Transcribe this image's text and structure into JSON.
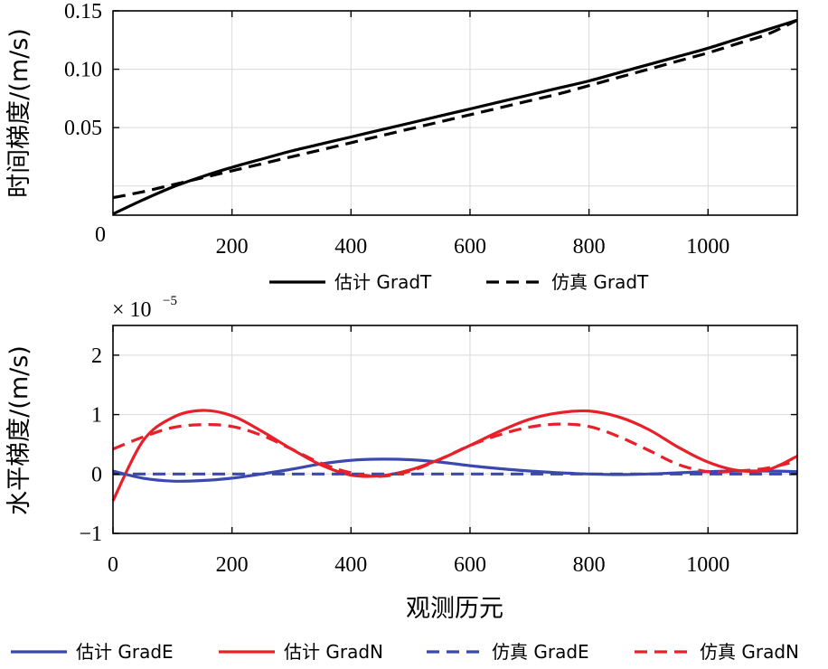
{
  "chart_data": [
    {
      "type": "line",
      "ylabel": "时间梯度/(m/s)",
      "xlabel": "",
      "xlim": [
        0,
        1150
      ],
      "ylim": [
        -0.025,
        0.15
      ],
      "x_ticks": [
        200,
        400,
        600,
        800,
        1000
      ],
      "x_tick_labels": [
        "200",
        "400",
        "600",
        "800",
        "1000"
      ],
      "y_ticks": [
        0.05,
        0.1,
        0.15
      ],
      "y_tick_labels": [
        "0.05",
        "0.10",
        "0.15"
      ],
      "origin_label": "0",
      "grid": true,
      "legend_position": "bottom",
      "x": [
        0,
        50,
        100,
        150,
        200,
        250,
        300,
        350,
        400,
        450,
        500,
        550,
        600,
        650,
        700,
        750,
        800,
        850,
        900,
        950,
        1000,
        1050,
        1100,
        1150
      ],
      "series": [
        {
          "name": "估计 GradT",
          "color": "#000000",
          "style": "solid",
          "values": [
            -0.024,
            -0.012,
            -0.001,
            0.008,
            0.016,
            0.023,
            0.03,
            0.036,
            0.042,
            0.048,
            0.054,
            0.06,
            0.066,
            0.072,
            0.078,
            0.084,
            0.09,
            0.097,
            0.104,
            0.111,
            0.118,
            0.126,
            0.134,
            0.142
          ]
        },
        {
          "name": "仿真 GradT",
          "color": "#000000",
          "style": "dashed",
          "values": [
            -0.01,
            -0.005,
            0.001,
            0.007,
            0.013,
            0.019,
            0.025,
            0.031,
            0.037,
            0.043,
            0.049,
            0.055,
            0.061,
            0.067,
            0.073,
            0.079,
            0.086,
            0.093,
            0.1,
            0.107,
            0.114,
            0.122,
            0.13,
            0.142
          ]
        }
      ]
    },
    {
      "type": "line",
      "ylabel": "水平梯度/(m/s)",
      "xlabel": "观测历元",
      "exponent_base": "× 10",
      "exponent_power": "−5",
      "xlim": [
        0,
        1150
      ],
      "ylim": [
        -1,
        2.5
      ],
      "x_ticks": [
        0,
        200,
        400,
        600,
        800,
        1000
      ],
      "x_tick_labels": [
        "0",
        "200",
        "400",
        "600",
        "800",
        "1000"
      ],
      "y_ticks": [
        -1,
        0,
        1,
        2
      ],
      "y_tick_labels": [
        "−1",
        "0",
        "1",
        "2"
      ],
      "grid": true,
      "legend_position": "bottom",
      "x": [
        0,
        50,
        100,
        150,
        200,
        250,
        300,
        350,
        400,
        450,
        500,
        550,
        600,
        650,
        700,
        750,
        800,
        850,
        900,
        950,
        1000,
        1050,
        1100,
        1150
      ],
      "series": [
        {
          "name": "估计 GradE",
          "color": "#3b48b0",
          "style": "solid",
          "values": [
            0.05,
            -0.07,
            -0.12,
            -0.11,
            -0.07,
            0.0,
            0.08,
            0.17,
            0.23,
            0.25,
            0.24,
            0.2,
            0.14,
            0.09,
            0.05,
            0.02,
            0.0,
            -0.01,
            0.0,
            0.02,
            0.04,
            0.05,
            0.05,
            0.04
          ]
        },
        {
          "name": "估计 GradN",
          "color": "#e8202a",
          "style": "solid",
          "values": [
            -0.45,
            0.55,
            0.95,
            1.07,
            0.98,
            0.72,
            0.42,
            0.15,
            -0.02,
            -0.03,
            0.07,
            0.25,
            0.48,
            0.72,
            0.92,
            1.03,
            1.06,
            0.96,
            0.75,
            0.45,
            0.2,
            0.06,
            0.07,
            0.3
          ]
        },
        {
          "name": "仿真 GradE",
          "color": "#3b48b0",
          "style": "dashed",
          "values": [
            0.0,
            0.0,
            0.0,
            0.0,
            0.0,
            0.0,
            0.0,
            0.0,
            0.0,
            0.0,
            0.0,
            0.0,
            0.0,
            0.0,
            0.0,
            0.0,
            0.0,
            0.0,
            0.0,
            0.0,
            0.0,
            0.0,
            0.0,
            0.0
          ]
        },
        {
          "name": "仿真 GradN",
          "color": "#e8202a",
          "style": "dashed",
          "values": [
            0.42,
            0.62,
            0.78,
            0.83,
            0.8,
            0.65,
            0.42,
            0.18,
            0.02,
            -0.04,
            0.05,
            0.25,
            0.48,
            0.66,
            0.79,
            0.84,
            0.8,
            0.63,
            0.4,
            0.16,
            0.04,
            0.05,
            0.1,
            0.22
          ]
        }
      ]
    }
  ]
}
